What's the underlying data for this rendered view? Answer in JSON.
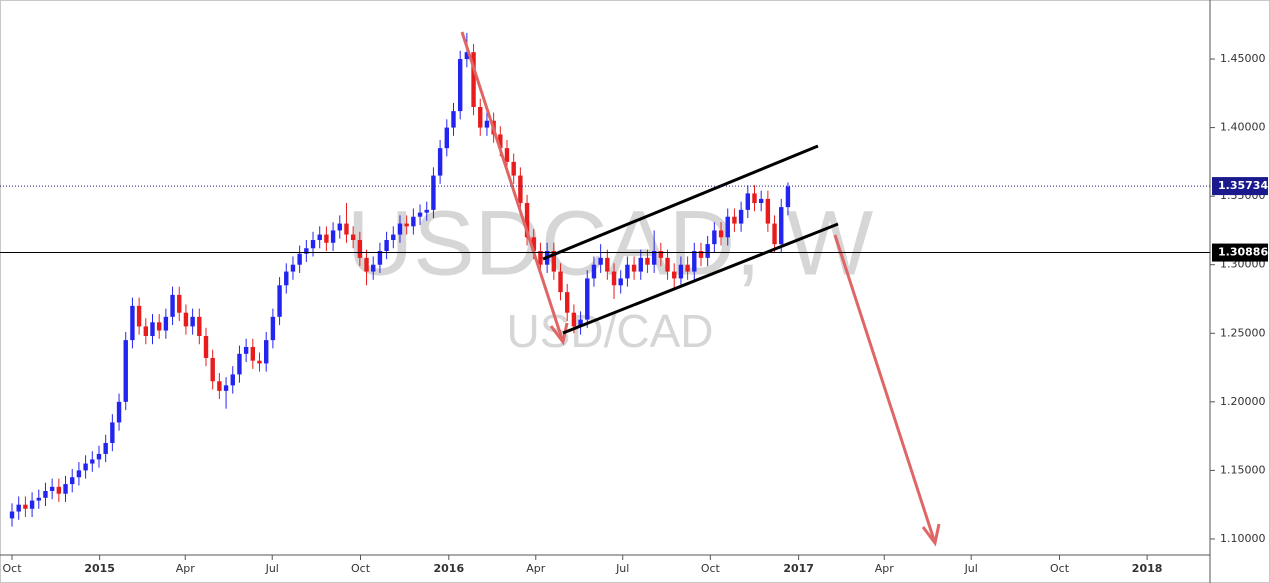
{
  "chart_data": {
    "type": "candlestick",
    "watermark": "USDCAD, W",
    "watermark_sub": "USD/CAD",
    "up_color": "#2424f0",
    "down_color": "#e81c1c",
    "xlim": [
      -1.05,
      179.1
    ],
    "ylim": [
      1.0883,
      1.4894
    ],
    "xticks": [
      {
        "value": 0,
        "label": "Oct"
      },
      {
        "value": 13.1,
        "label": "2015",
        "bold": true
      },
      {
        "value": 25.9,
        "label": "Apr"
      },
      {
        "value": 38.9,
        "label": "Jul"
      },
      {
        "value": 52.1,
        "label": "Oct"
      },
      {
        "value": 65.3,
        "label": "2016",
        "bold": true
      },
      {
        "value": 78.3,
        "label": "Apr"
      },
      {
        "value": 91.3,
        "label": "Jul"
      },
      {
        "value": 104.4,
        "label": "Oct"
      },
      {
        "value": 117.6,
        "label": "2017",
        "bold": true
      },
      {
        "value": 130.4,
        "label": "Apr"
      },
      {
        "value": 143.4,
        "label": "Jul"
      },
      {
        "value": 156.6,
        "label": "Oct"
      },
      {
        "value": 169.7,
        "label": "2018",
        "bold": true
      }
    ],
    "yticks": [
      {
        "value": 1.1,
        "label": "1.10000"
      },
      {
        "value": 1.15,
        "label": "1.15000"
      },
      {
        "value": 1.2,
        "label": "1.20000"
      },
      {
        "value": 1.25,
        "label": "1.25000"
      },
      {
        "value": 1.3,
        "label": "1.30000"
      },
      {
        "value": 1.35,
        "label": "1.35000"
      },
      {
        "value": 1.4,
        "label": "1.40000"
      },
      {
        "value": 1.45,
        "label": "1.45000"
      }
    ],
    "price_lines": [
      {
        "value": 1.35734,
        "label": "1.35734",
        "color": "#1a1a8c",
        "style": "dotted"
      },
      {
        "value": 1.30886,
        "label": "1.30886",
        "color": "#000000",
        "style": "solid"
      }
    ],
    "x": [
      0,
      1,
      2,
      3,
      4,
      5,
      6,
      7,
      8,
      9,
      10,
      11,
      12,
      13,
      14,
      15,
      16,
      17,
      18,
      19,
      20,
      21,
      22,
      23,
      24,
      25,
      26,
      27,
      28,
      29,
      30,
      31,
      32,
      33,
      34,
      35,
      36,
      37,
      38,
      39,
      40,
      41,
      42,
      43,
      44,
      45,
      46,
      47,
      48,
      49,
      50,
      51,
      52,
      53,
      54,
      55,
      56,
      57,
      58,
      59,
      60,
      61,
      62,
      63,
      64,
      65,
      66,
      67,
      68,
      69,
      70,
      71,
      72,
      73,
      74,
      75,
      76,
      77,
      78,
      79,
      80,
      81,
      82,
      83,
      84,
      85,
      86,
      87,
      88,
      89,
      90,
      91,
      92,
      93,
      94,
      95,
      96,
      97,
      98,
      99,
      100,
      101,
      102,
      103,
      104,
      105,
      106,
      107,
      108,
      109,
      110,
      111,
      112,
      113,
      114,
      115,
      116
    ],
    "ohlc": [
      [
        1.115,
        1.126,
        1.109,
        1.12
      ],
      [
        1.12,
        1.131,
        1.114,
        1.125
      ],
      [
        1.125,
        1.131,
        1.116,
        1.122
      ],
      [
        1.122,
        1.134,
        1.116,
        1.128
      ],
      [
        1.128,
        1.136,
        1.122,
        1.13
      ],
      [
        1.13,
        1.141,
        1.124,
        1.135
      ],
      [
        1.135,
        1.144,
        1.129,
        1.138
      ],
      [
        1.138,
        1.144,
        1.127,
        1.133
      ],
      [
        1.133,
        1.146,
        1.127,
        1.14
      ],
      [
        1.14,
        1.151,
        1.134,
        1.145
      ],
      [
        1.145,
        1.156,
        1.139,
        1.15
      ],
      [
        1.15,
        1.161,
        1.144,
        1.155
      ],
      [
        1.155,
        1.164,
        1.149,
        1.158
      ],
      [
        1.158,
        1.168,
        1.152,
        1.162
      ],
      [
        1.162,
        1.176,
        1.156,
        1.17
      ],
      [
        1.17,
        1.191,
        1.164,
        1.185
      ],
      [
        1.185,
        1.206,
        1.179,
        1.2
      ],
      [
        1.2,
        1.251,
        1.194,
        1.245
      ],
      [
        1.245,
        1.276,
        1.239,
        1.27
      ],
      [
        1.27,
        1.276,
        1.249,
        1.255
      ],
      [
        1.255,
        1.261,
        1.242,
        1.248
      ],
      [
        1.248,
        1.264,
        1.242,
        1.258
      ],
      [
        1.258,
        1.264,
        1.246,
        1.252
      ],
      [
        1.252,
        1.268,
        1.246,
        1.262
      ],
      [
        1.262,
        1.284,
        1.256,
        1.278
      ],
      [
        1.278,
        1.284,
        1.259,
        1.265
      ],
      [
        1.265,
        1.271,
        1.249,
        1.255
      ],
      [
        1.255,
        1.268,
        1.249,
        1.262
      ],
      [
        1.262,
        1.268,
        1.242,
        1.248
      ],
      [
        1.248,
        1.254,
        1.226,
        1.232
      ],
      [
        1.232,
        1.238,
        1.209,
        1.215
      ],
      [
        1.215,
        1.221,
        1.202,
        1.208
      ],
      [
        1.208,
        1.218,
        1.195,
        1.212
      ],
      [
        1.212,
        1.226,
        1.206,
        1.22
      ],
      [
        1.22,
        1.241,
        1.214,
        1.235
      ],
      [
        1.235,
        1.246,
        1.229,
        1.24
      ],
      [
        1.24,
        1.246,
        1.224,
        1.23
      ],
      [
        1.23,
        1.236,
        1.222,
        1.228
      ],
      [
        1.228,
        1.251,
        1.222,
        1.245
      ],
      [
        1.245,
        1.268,
        1.239,
        1.262
      ],
      [
        1.262,
        1.291,
        1.256,
        1.285
      ],
      [
        1.285,
        1.301,
        1.279,
        1.295
      ],
      [
        1.295,
        1.306,
        1.289,
        1.3
      ],
      [
        1.3,
        1.314,
        1.294,
        1.308
      ],
      [
        1.308,
        1.318,
        1.302,
        1.312
      ],
      [
        1.312,
        1.324,
        1.306,
        1.318
      ],
      [
        1.318,
        1.328,
        1.312,
        1.322
      ],
      [
        1.322,
        1.328,
        1.31,
        1.316
      ],
      [
        1.316,
        1.331,
        1.31,
        1.325
      ],
      [
        1.325,
        1.336,
        1.319,
        1.33
      ],
      [
        1.33,
        1.345,
        1.316,
        1.322
      ],
      [
        1.322,
        1.328,
        1.312,
        1.318
      ],
      [
        1.318,
        1.324,
        1.299,
        1.305
      ],
      [
        1.305,
        1.311,
        1.285,
        1.295
      ],
      [
        1.295,
        1.306,
        1.289,
        1.3
      ],
      [
        1.3,
        1.316,
        1.294,
        1.31
      ],
      [
        1.31,
        1.324,
        1.304,
        1.318
      ],
      [
        1.318,
        1.328,
        1.312,
        1.322
      ],
      [
        1.322,
        1.336,
        1.316,
        1.33
      ],
      [
        1.33,
        1.336,
        1.322,
        1.328
      ],
      [
        1.328,
        1.341,
        1.322,
        1.335
      ],
      [
        1.335,
        1.344,
        1.329,
        1.338
      ],
      [
        1.338,
        1.346,
        1.332,
        1.34
      ],
      [
        1.34,
        1.371,
        1.334,
        1.365
      ],
      [
        1.365,
        1.391,
        1.359,
        1.385
      ],
      [
        1.385,
        1.406,
        1.379,
        1.4
      ],
      [
        1.4,
        1.418,
        1.394,
        1.412
      ],
      [
        1.412,
        1.456,
        1.406,
        1.45
      ],
      [
        1.45,
        1.469,
        1.444,
        1.455
      ],
      [
        1.455,
        1.461,
        1.409,
        1.415
      ],
      [
        1.415,
        1.421,
        1.394,
        1.4
      ],
      [
        1.4,
        1.411,
        1.394,
        1.405
      ],
      [
        1.405,
        1.411,
        1.389,
        1.395
      ],
      [
        1.395,
        1.401,
        1.379,
        1.385
      ],
      [
        1.385,
        1.391,
        1.369,
        1.375
      ],
      [
        1.375,
        1.381,
        1.359,
        1.365
      ],
      [
        1.365,
        1.371,
        1.339,
        1.345
      ],
      [
        1.345,
        1.351,
        1.314,
        1.32
      ],
      [
        1.32,
        1.326,
        1.304,
        1.31
      ],
      [
        1.31,
        1.316,
        1.294,
        1.3
      ],
      [
        1.3,
        1.316,
        1.294,
        1.31
      ],
      [
        1.31,
        1.316,
        1.289,
        1.295
      ],
      [
        1.295,
        1.301,
        1.274,
        1.28
      ],
      [
        1.28,
        1.286,
        1.259,
        1.265
      ],
      [
        1.265,
        1.271,
        1.25,
        1.255
      ],
      [
        1.255,
        1.266,
        1.249,
        1.26
      ],
      [
        1.26,
        1.296,
        1.254,
        1.29
      ],
      [
        1.29,
        1.306,
        1.284,
        1.3
      ],
      [
        1.3,
        1.315,
        1.294,
        1.305
      ],
      [
        1.305,
        1.311,
        1.289,
        1.295
      ],
      [
        1.295,
        1.301,
        1.275,
        1.285
      ],
      [
        1.285,
        1.296,
        1.279,
        1.29
      ],
      [
        1.29,
        1.306,
        1.284,
        1.3
      ],
      [
        1.3,
        1.306,
        1.289,
        1.295
      ],
      [
        1.295,
        1.311,
        1.289,
        1.305
      ],
      [
        1.305,
        1.311,
        1.294,
        1.3
      ],
      [
        1.3,
        1.325,
        1.294,
        1.31
      ],
      [
        1.31,
        1.316,
        1.299,
        1.305
      ],
      [
        1.305,
        1.311,
        1.289,
        1.295
      ],
      [
        1.295,
        1.301,
        1.282,
        1.29
      ],
      [
        1.29,
        1.306,
        1.284,
        1.3
      ],
      [
        1.3,
        1.306,
        1.289,
        1.295
      ],
      [
        1.295,
        1.316,
        1.289,
        1.31
      ],
      [
        1.31,
        1.316,
        1.299,
        1.305
      ],
      [
        1.305,
        1.321,
        1.299,
        1.315
      ],
      [
        1.315,
        1.331,
        1.309,
        1.325
      ],
      [
        1.325,
        1.331,
        1.314,
        1.32
      ],
      [
        1.32,
        1.341,
        1.314,
        1.335
      ],
      [
        1.335,
        1.341,
        1.324,
        1.33
      ],
      [
        1.33,
        1.346,
        1.324,
        1.34
      ],
      [
        1.34,
        1.358,
        1.334,
        1.352
      ],
      [
        1.352,
        1.358,
        1.339,
        1.345
      ],
      [
        1.345,
        1.354,
        1.339,
        1.348
      ],
      [
        1.348,
        1.354,
        1.324,
        1.33
      ],
      [
        1.33,
        1.336,
        1.309,
        1.315
      ],
      [
        1.315,
        1.348,
        1.309,
        1.342
      ],
      [
        1.342,
        1.36,
        1.336,
        1.357
      ]
    ]
  }
}
